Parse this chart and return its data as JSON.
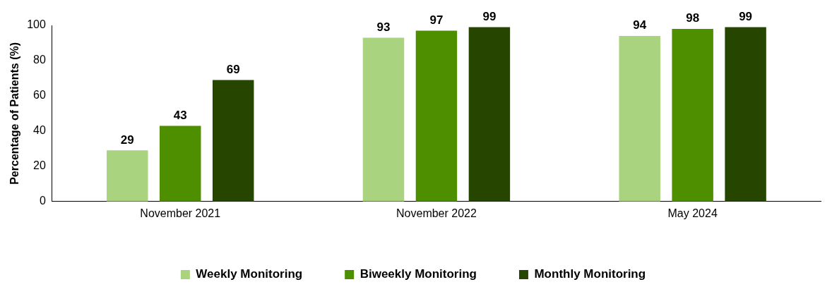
{
  "chart_data": {
    "type": "bar",
    "ylabel": "Percentage of Patients (%)",
    "categories": [
      "November 2021",
      "November 2022",
      "May 2024"
    ],
    "series": [
      {
        "name": "Weekly Monitoring",
        "color": "#a9d37e",
        "values": [
          29,
          93,
          94
        ]
      },
      {
        "name": "Biweekly Monitoring",
        "color": "#4e8f00",
        "values": [
          43,
          97,
          98
        ]
      },
      {
        "name": "Monthly Monitoring",
        "color": "#264600",
        "values": [
          69,
          99,
          99
        ]
      }
    ],
    "ylim": [
      0,
      100
    ],
    "yticks": [
      0,
      20,
      40,
      60,
      80,
      100
    ],
    "grid": false,
    "legend": "bottom",
    "data_labels": true
  }
}
